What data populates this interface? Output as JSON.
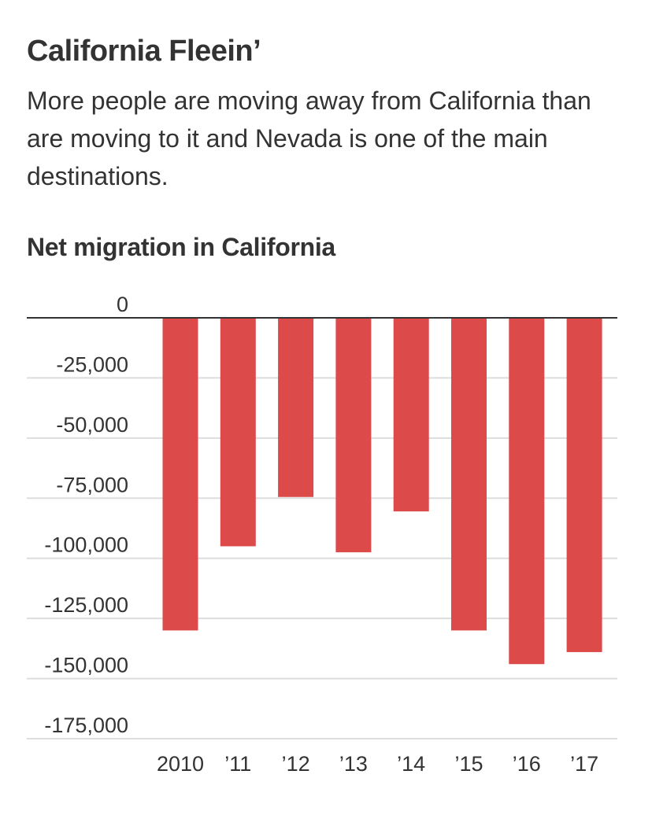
{
  "headline": "California Fleein’",
  "dek": "More people are moving away from California than are moving to it and Nevada is one of the main destinations.",
  "chart_data": {
    "type": "bar",
    "title": "Net migration in California",
    "categories": [
      "2010",
      "’11",
      "’12",
      "’13",
      "’14",
      "’15",
      "’16",
      "’17"
    ],
    "values": [
      -130000,
      -95000,
      -74500,
      -97500,
      -80500,
      -130000,
      -144000,
      -139000
    ],
    "ylim": [
      -175000,
      0
    ],
    "yticks": [
      0,
      -25000,
      -50000,
      -75000,
      -100000,
      -125000,
      -150000,
      -175000
    ],
    "ytick_labels": [
      "0",
      "-25,000",
      "-50,000",
      "-75,000",
      "-100,000",
      "-125,000",
      "-150,000",
      "-175,000"
    ],
    "bar_color": "#dc4a4a",
    "grid": true
  }
}
